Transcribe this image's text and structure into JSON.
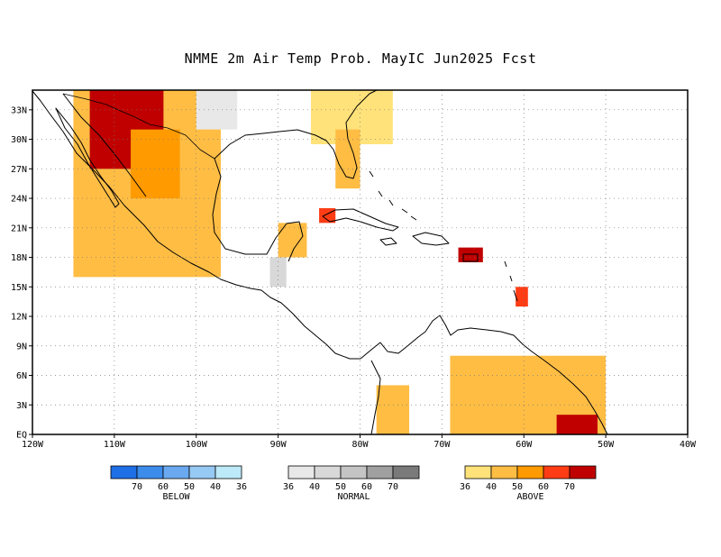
{
  "title": "NMME 2m Air Temp Prob. MayIC  Jun2025 Fcst",
  "map": {
    "lon_range": [
      -120,
      -40
    ],
    "lat_range": [
      0,
      35
    ],
    "x_ticks": [
      {
        "lon": -120,
        "label": "120W"
      },
      {
        "lon": -110,
        "label": "110W"
      },
      {
        "lon": -100,
        "label": "100W"
      },
      {
        "lon": -90,
        "label": "90W"
      },
      {
        "lon": -80,
        "label": "80W"
      },
      {
        "lon": -70,
        "label": "70W"
      },
      {
        "lon": -60,
        "label": "60W"
      },
      {
        "lon": -50,
        "label": "50W"
      },
      {
        "lon": -40,
        "label": "40W"
      }
    ],
    "y_ticks": [
      {
        "lat": 0,
        "label": "EQ"
      },
      {
        "lat": 3,
        "label": "3N"
      },
      {
        "lat": 6,
        "label": "6N"
      },
      {
        "lat": 9,
        "label": "9N"
      },
      {
        "lat": 12,
        "label": "12N"
      },
      {
        "lat": 15,
        "label": "15N"
      },
      {
        "lat": 18,
        "label": "18N"
      },
      {
        "lat": 21,
        "label": "21N"
      },
      {
        "lat": 24,
        "label": "24N"
      },
      {
        "lat": 27,
        "label": "27N"
      },
      {
        "lat": 30,
        "label": "30N"
      },
      {
        "lat": 33,
        "label": "33N"
      }
    ],
    "gridlines": true,
    "probability_fields": [
      {
        "category": "above",
        "level": 1,
        "region": "southeastern United States",
        "lon": [
          -86,
          -76
        ],
        "lat": [
          29.5,
          35
        ]
      },
      {
        "category": "above",
        "level": 1,
        "region": "Texas and northeastern Mexico",
        "lon": [
          -102,
          -97
        ],
        "lat": [
          24,
          33
        ]
      },
      {
        "category": "above",
        "level": 2,
        "region": "northwestern and central Mexico",
        "lon": [
          -115,
          -97
        ],
        "lat": [
          16,
          35
        ]
      },
      {
        "category": "above",
        "level": 5,
        "region": "southwestern United States / Sonora",
        "lon": [
          -113,
          -104
        ],
        "lat": [
          27,
          35
        ]
      },
      {
        "category": "above",
        "level": 3,
        "region": "northern Mexico",
        "lon": [
          -108,
          -102
        ],
        "lat": [
          24,
          31
        ]
      },
      {
        "category": "above",
        "level": 2,
        "region": "Florida peninsula",
        "lon": [
          -83,
          -80
        ],
        "lat": [
          25,
          31
        ]
      },
      {
        "category": "above",
        "level": 2,
        "region": "Yucatan Peninsula",
        "lon": [
          -90,
          -86.5
        ],
        "lat": [
          18,
          21.5
        ]
      },
      {
        "category": "above",
        "level": 4,
        "region": "western Cuba",
        "lon": [
          -85,
          -83
        ],
        "lat": [
          21.5,
          23
        ]
      },
      {
        "category": "above",
        "level": 5,
        "region": "Puerto Rico",
        "lon": [
          -68,
          -65
        ],
        "lat": [
          17.5,
          19
        ]
      },
      {
        "category": "above",
        "level": 4,
        "region": "Barbados area",
        "lon": [
          -61,
          -59.5
        ],
        "lat": [
          13,
          15
        ]
      },
      {
        "category": "above",
        "level": 2,
        "region": "Colombia",
        "lon": [
          -78,
          -74
        ],
        "lat": [
          0,
          5
        ]
      },
      {
        "category": "above",
        "level": 2,
        "region": "Venezuela and the Guianas",
        "lon": [
          -69,
          -50
        ],
        "lat": [
          0,
          8
        ]
      },
      {
        "category": "above",
        "level": 5,
        "region": "French Guiana / Amapa",
        "lon": [
          -56,
          -51
        ],
        "lat": [
          0,
          2
        ]
      },
      {
        "category": "normal",
        "level": 1,
        "region": "central Texas",
        "lon": [
          -100,
          -95
        ],
        "lat": [
          31,
          35
        ]
      },
      {
        "category": "normal",
        "level": 2,
        "region": "Guatemala",
        "lon": [
          -91,
          -89
        ],
        "lat": [
          15,
          18
        ]
      }
    ]
  },
  "legend": [
    {
      "id": "below",
      "title": "BELOW",
      "labels": [
        "70",
        "60",
        "50",
        "40",
        "36"
      ],
      "colors": [
        "#1f6fe6",
        "#3c8ceb",
        "#6aa9f0",
        "#97c9f5",
        "#bdeaf8"
      ]
    },
    {
      "id": "normal",
      "title": "NORMAL",
      "labels": [
        "36",
        "40",
        "50",
        "60",
        "70"
      ],
      "colors": [
        "#e8e8e8",
        "#d8d8d8",
        "#c4c4c4",
        "#a0a0a0",
        "#7a7a7a"
      ]
    },
    {
      "id": "above",
      "title": "ABOVE",
      "labels": [
        "36",
        "40",
        "50",
        "60",
        "70"
      ],
      "colors": [
        "#ffe27a",
        "#ffbd44",
        "#ff9a00",
        "#ff3c14",
        "#c00000"
      ]
    }
  ]
}
